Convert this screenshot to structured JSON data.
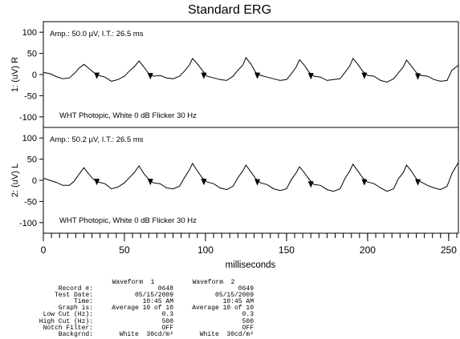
{
  "chart_data": {
    "type": "line",
    "title": "Standard ERG",
    "xlabel": "milliseconds",
    "xlim": [
      0,
      256
    ],
    "xticks": [
      0,
      50,
      100,
      150,
      200,
      250
    ],
    "xtick_labels": [
      "0",
      "50",
      "100",
      "150",
      "200",
      "250"
    ],
    "minor_tick_step": 5,
    "grid": false,
    "legend": "none",
    "panels": [
      {
        "ylabel": "1: (uV) R",
        "ylim": [
          -125,
          125
        ],
        "yticks": [
          100,
          50,
          0,
          -50,
          -100
        ],
        "ytick_labels": [
          "100",
          "50",
          "0",
          "-50",
          "-100"
        ],
        "annotation_top": "Amp.: 50.0 µV, I.T.: 26.5 ms",
        "annotation_bottom": "WHT Photopic,  White 0 dB Flicker 30 Hz",
        "series": [
          {
            "x": [
              0,
              4,
              8,
              12,
              16,
              19,
              22,
              25,
              28,
              31,
              34,
              38,
              42,
              46,
              50,
              53,
              56,
              59,
              62,
              65,
              68,
              72,
              76,
              80,
              84,
              87,
              90,
              92,
              95,
              98,
              101,
              105,
              109,
              113,
              117,
              120,
              123,
              125,
              128,
              131,
              134,
              138,
              142,
              146,
              150,
              153,
              156,
              158,
              161,
              164,
              167,
              171,
              175,
              179,
              183,
              186,
              189,
              191,
              194,
              197,
              200,
              204,
              208,
              212,
              216,
              219,
              222,
              224,
              227,
              230,
              233,
              237,
              241,
              245,
              249,
              252,
              256
            ],
            "y": [
              5,
              2,
              -5,
              -10,
              -8,
              2,
              15,
              24,
              15,
              5,
              -2,
              -6,
              -16,
              -12,
              -4,
              8,
              18,
              32,
              18,
              2,
              -4,
              -2,
              -8,
              -10,
              -4,
              8,
              22,
              38,
              25,
              10,
              -4,
              -8,
              -12,
              -14,
              -4,
              10,
              22,
              40,
              25,
              5,
              -2,
              -6,
              -10,
              -14,
              -12,
              2,
              18,
              35,
              22,
              5,
              -4,
              -6,
              -14,
              -12,
              -10,
              5,
              20,
              38,
              24,
              8,
              -2,
              -4,
              -14,
              -18,
              -10,
              4,
              18,
              34,
              20,
              5,
              -2,
              -4,
              -12,
              -16,
              -14,
              10,
              22
            ],
            "markers_x": [
              33,
              66,
              99,
              132,
              165,
              198,
              231
            ],
            "markers_y": [
              -3,
              -4,
              -3,
              -3,
              -4,
              -3,
              -5
            ]
          }
        ]
      },
      {
        "ylabel": "2: (uV) L",
        "ylim": [
          -125,
          125
        ],
        "yticks": [
          100,
          50,
          0,
          -50,
          -100
        ],
        "ytick_labels": [
          "100",
          "50",
          "0",
          "-50",
          "-100"
        ],
        "annotation_top": "Amp.: 50.2 µV, I.T.: 26.5 ms",
        "annotation_bottom": "WHT Photopic,  White 0 dB Flicker 30 Hz",
        "series": [
          {
            "x": [
              0,
              4,
              8,
              12,
              16,
              19,
              22,
              25,
              28,
              31,
              34,
              38,
              42,
              46,
              50,
              53,
              56,
              59,
              62,
              65,
              68,
              72,
              76,
              80,
              84,
              87,
              90,
              92,
              95,
              98,
              101,
              105,
              109,
              113,
              117,
              120,
              123,
              125,
              128,
              131,
              134,
              138,
              142,
              146,
              150,
              153,
              156,
              158,
              161,
              164,
              167,
              171,
              175,
              179,
              183,
              186,
              189,
              191,
              194,
              197,
              200,
              204,
              208,
              212,
              216,
              219,
              222,
              224,
              227,
              230,
              233,
              237,
              241,
              245,
              249,
              252,
              256
            ],
            "y": [
              5,
              0,
              -5,
              -12,
              -12,
              -2,
              14,
              30,
              15,
              2,
              -4,
              -8,
              -20,
              -16,
              -6,
              6,
              18,
              34,
              16,
              2,
              -6,
              -8,
              -18,
              -20,
              -14,
              6,
              24,
              40,
              22,
              6,
              -4,
              -8,
              -18,
              -22,
              -14,
              6,
              22,
              36,
              20,
              4,
              -6,
              -10,
              -20,
              -24,
              -20,
              2,
              18,
              32,
              18,
              2,
              -10,
              -12,
              -22,
              -26,
              -20,
              4,
              22,
              38,
              22,
              6,
              -4,
              -8,
              -18,
              -26,
              -20,
              4,
              18,
              36,
              22,
              4,
              -4,
              -12,
              -18,
              -22,
              -14,
              16,
              42
            ],
            "markers_x": [
              33,
              66,
              99,
              132,
              165,
              198,
              231
            ],
            "markers_y": [
              -4,
              -4,
              -4,
              -5,
              -10,
              -5,
              -5
            ]
          }
        ]
      }
    ]
  },
  "info": {
    "columns": [
      "Waveform  1",
      "Waveform  2"
    ],
    "rows": [
      {
        "label": "Record #:",
        "v1": "0648",
        "v2": "0649"
      },
      {
        "label": "Test Date:",
        "v1": "05/15/2009",
        "v2": "05/15/2009"
      },
      {
        "label": "Time:",
        "v1": "10:45 AM",
        "v2": "10:45 AM"
      },
      {
        "label": "Graph is:",
        "v1": "Average 10 of 10",
        "v2": "Average 10 of 10"
      },
      {
        "label": "Low Cut (Hz):",
        "v1": "0.3",
        "v2": "0.3"
      },
      {
        "label": "High Cut (Hz):",
        "v1": "500",
        "v2": "500"
      },
      {
        "label": "Notch Filter:",
        "v1": "OFF",
        "v2": "OFF"
      },
      {
        "label": "Backgrnd:",
        "v1": "White  30cd/m²",
        "v2": "White  30cd/m²"
      }
    ]
  }
}
